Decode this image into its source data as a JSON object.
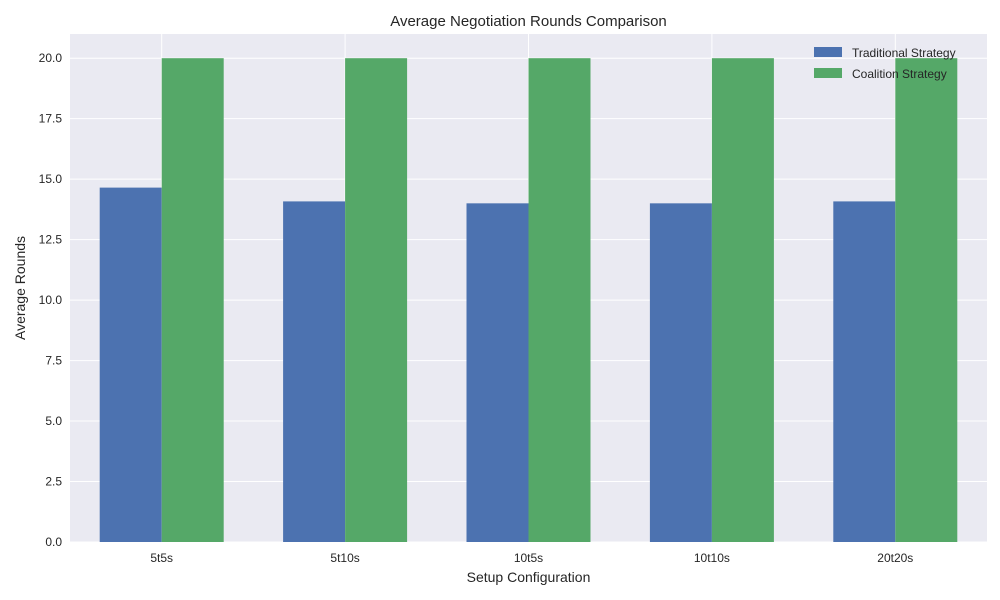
{
  "chart_data": {
    "type": "bar",
    "title": "Average Negotiation Rounds Comparison",
    "xlabel": "Setup Configuration",
    "ylabel": "Average Rounds",
    "categories": [
      "5t5s",
      "5t10s",
      "10t5s",
      "10t10s",
      "20t20s"
    ],
    "series": [
      {
        "name": "Traditional Strategy",
        "color": "#4c72b0",
        "values": [
          14.65,
          14.08,
          14.0,
          14.0,
          14.08
        ]
      },
      {
        "name": "Coalition Strategy",
        "color": "#55a868",
        "values": [
          20.0,
          20.0,
          20.0,
          20.0,
          20.0
        ]
      }
    ],
    "ylim": [
      0,
      21
    ],
    "yticks": [
      "0.0",
      "2.5",
      "5.0",
      "7.5",
      "10.0",
      "12.5",
      "15.0",
      "17.5",
      "20.0"
    ],
    "grid": true,
    "legend_position": "top-right",
    "background_color": "#eaeaf2",
    "grid_color": "#ffffff"
  }
}
